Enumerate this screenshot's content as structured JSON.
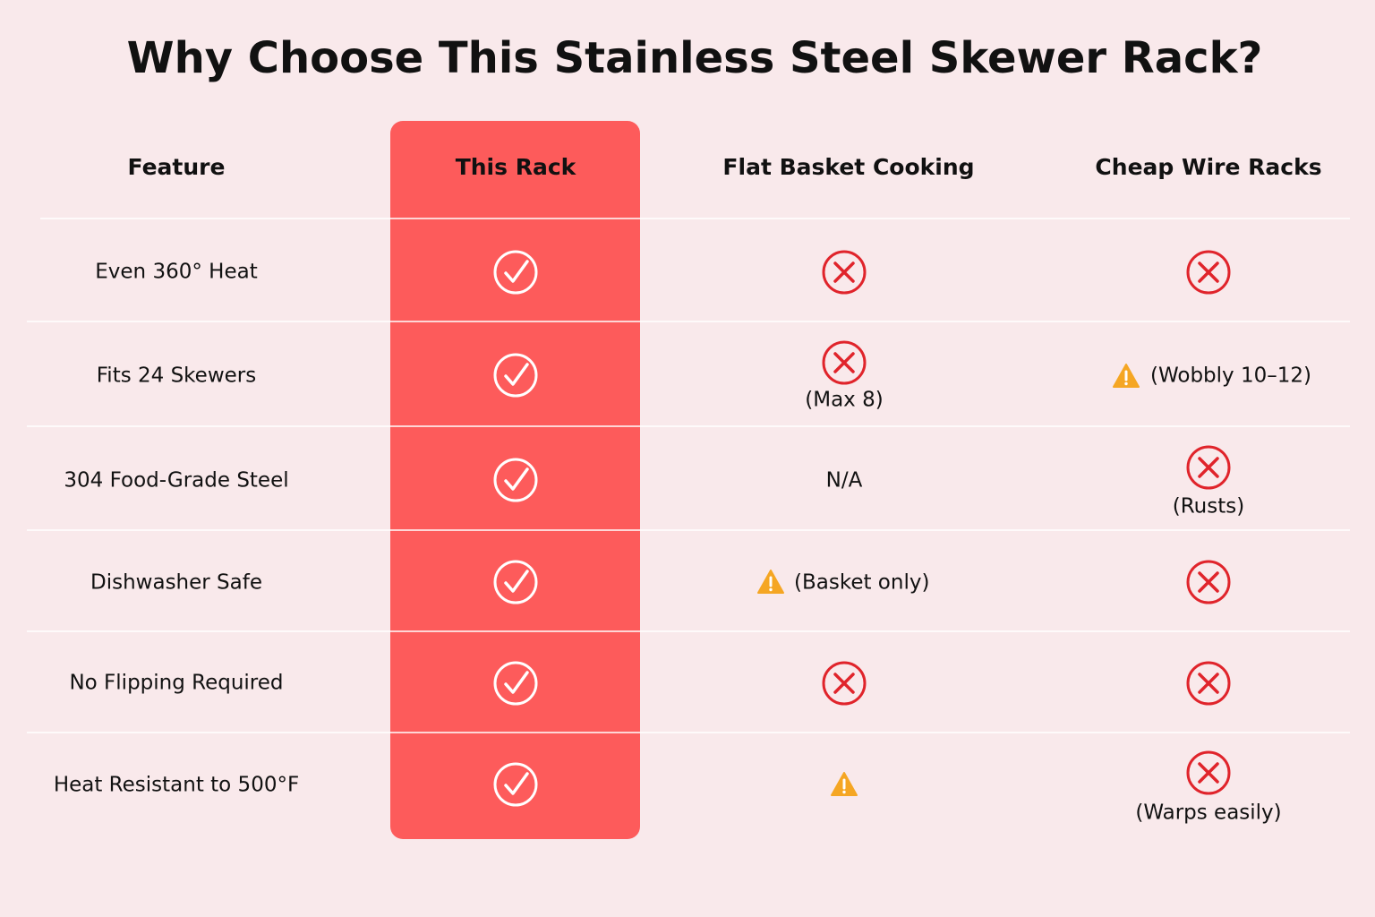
{
  "title": "Why Choose This Stainless Steel Skewer Rack?",
  "headers": [
    "Feature",
    "This Rack",
    "Flat Basket Cooking",
    "Cheap Wire Racks"
  ],
  "rows": [
    {
      "feature": "Even 360° Heat"
    },
    {
      "feature": "Fits 24 Skewers",
      "flat": "(Max 8)",
      "wire": "(Wobbly 10–12)"
    },
    {
      "feature": "304 Food-Grade Steel",
      "flat": "N/A",
      "wire": "(Rusts)"
    },
    {
      "feature": "Dishwasher Safe",
      "flat": "(Basket only)"
    },
    {
      "feature": "No Flipping Required"
    },
    {
      "feature": "Heat Resistant to 500°F",
      "wire": "(Warps easily)"
    }
  ]
}
